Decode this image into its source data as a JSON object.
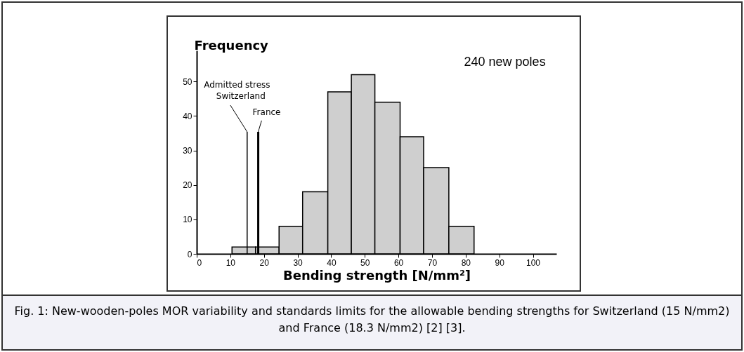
{
  "chart_data": {
    "type": "histogram",
    "xlabel": "Bending strength  [N/mm²]",
    "ylabel": "Frequency",
    "bins": [
      10.5,
      17.5,
      24.5,
      31.5,
      39,
      46,
      53,
      60.5,
      67.5,
      75,
      82.5
    ],
    "values": [
      2,
      2,
      8,
      18,
      47,
      52,
      44,
      34,
      25,
      8
    ],
    "color": "#cfcfcf",
    "xlim": [
      0,
      107
    ],
    "xticks": [
      0,
      10,
      20,
      30,
      40,
      50,
      60,
      70,
      80,
      90,
      100
    ],
    "ylim": [
      0,
      59
    ],
    "yticks": [
      0,
      10,
      20,
      30,
      40,
      50
    ],
    "grid": false,
    "ref_lines": [
      {
        "axis": "x",
        "value": 15,
        "label": "Switzerland",
        "color": "#000000"
      },
      {
        "axis": "x",
        "value": 18.3,
        "label": "France",
        "color": "#000000"
      }
    ],
    "annotations": [
      "Admitted stress",
      "240 new poles",
      "Fig. 1: New-wooden-poles MOR variability and standards limits for the allowable bending strengths for Switzerland (15 N/mm2) and France (18.3 N/mm2) [2] [3]."
    ]
  }
}
